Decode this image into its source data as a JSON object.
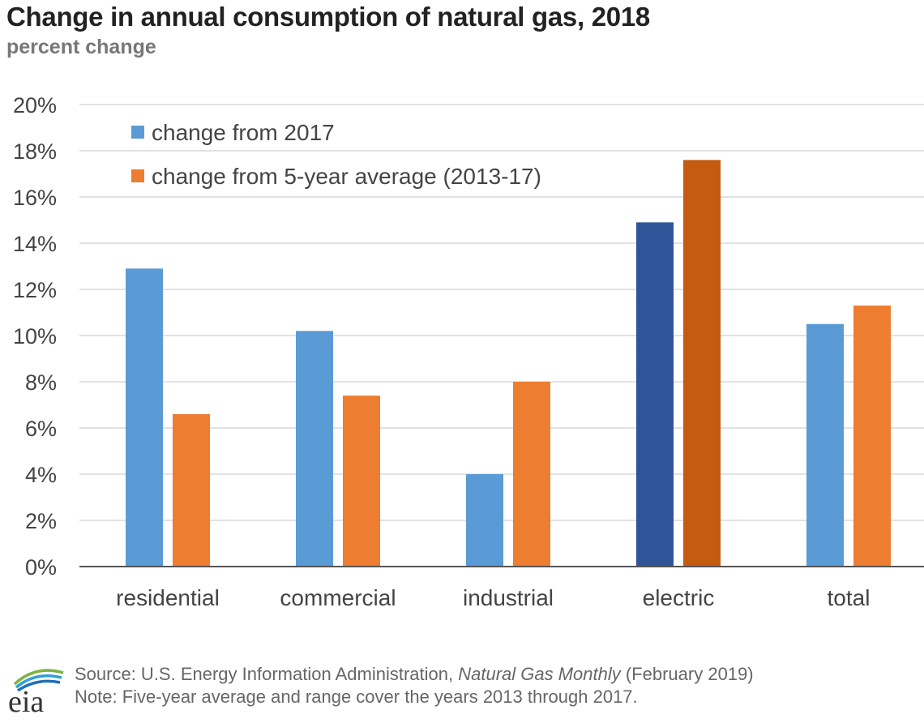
{
  "title": "Change in annual consumption of natural gas, 2018",
  "subtitle": "percent change",
  "footer": {
    "source_prefix": "Source: U.S. Energy Information Administration, ",
    "source_italic": "Natural Gas Monthly",
    "source_suffix": " (February 2019)",
    "note": "Note: Five-year average and range cover the years 2013 through 2017."
  },
  "logo_text": "eia",
  "chart_data": {
    "type": "bar",
    "categories": [
      "residential",
      "commercial",
      "industrial",
      "electric",
      "total"
    ],
    "series": [
      {
        "name": "change from 2017",
        "color": "#5B9BD5",
        "values": [
          12.9,
          10.2,
          4.0,
          14.9,
          10.5
        ],
        "highlight": {
          "index": 3,
          "color": "#2E5597"
        }
      },
      {
        "name": "change from 5-year average (2013-17)",
        "color": "#ED7D31",
        "values": [
          6.6,
          7.4,
          8.0,
          17.6,
          11.3
        ],
        "highlight": {
          "index": 3,
          "color": "#C55A11"
        }
      }
    ],
    "yticks": [
      "0%",
      "2%",
      "4%",
      "6%",
      "8%",
      "10%",
      "12%",
      "14%",
      "16%",
      "18%",
      "20%"
    ],
    "ylim": [
      0,
      20
    ],
    "grid": true,
    "legend": "top-left",
    "xlabel": "",
    "ylabel": ""
  }
}
